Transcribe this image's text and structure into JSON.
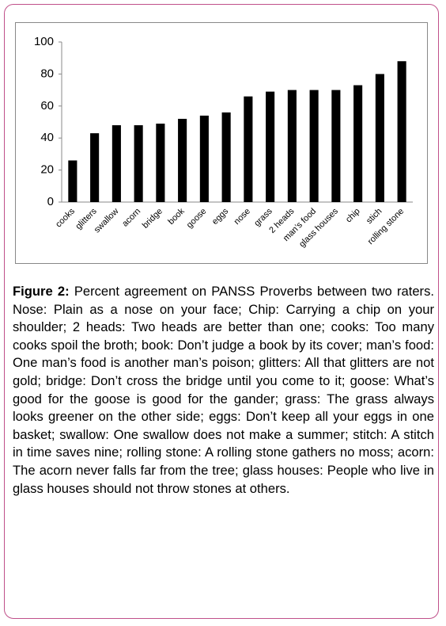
{
  "chart_data": {
    "type": "bar",
    "categories": [
      "cooks",
      "glitters",
      "swallow",
      "acorn",
      "bridge",
      "book",
      "goose",
      "eggs",
      "nose",
      "grass",
      "2 heads",
      "man’s food",
      "glass houses",
      "chip",
      "stich",
      "rolling stone"
    ],
    "values": [
      26,
      43,
      48,
      48,
      49,
      52,
      54,
      56,
      66,
      69,
      70,
      70,
      70,
      73,
      80,
      88
    ],
    "color": "#000000",
    "ylim": [
      0,
      100
    ],
    "yticks": [
      0,
      20,
      40,
      60,
      80,
      100
    ],
    "grid": false
  },
  "caption": {
    "label": "Figure 2:",
    "text": "Percent agreement on PANSS Proverbs between two raters. Nose: Plain as a nose on your face; Chip: Carrying a chip on your shoulder; 2 heads: Two heads are better than one; cooks: Too many cooks spoil the broth; book: Don’t judge a book by its cover; man’s food: One man’s food is another man’s poison; glitters: All that glitters are not gold; bridge: Don’t cross the bridge until you come to it; goose: What’s good for the goose is good for the gander; grass: The grass always looks greener on the other side; eggs: Don’t keep all your eggs in one basket; swallow: One swallow does not make a summer; stitch: A stitch in time saves nine; rolling stone: A rolling stone gathers no moss; acorn: The acorn never falls far from the tree; glass houses: People who live in glass houses should not throw stones at others."
  }
}
